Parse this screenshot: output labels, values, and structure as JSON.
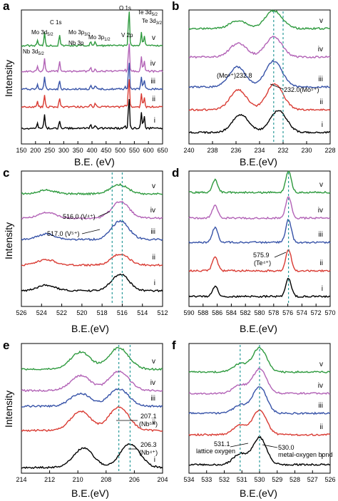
{
  "figure": {
    "colors": {
      "v": "#2e9a3e",
      "iv": "#b262b6",
      "iii": "#3753a8",
      "ii": "#d93a32",
      "i": "#000000",
      "dash": "#2a9a9a"
    },
    "panels": [
      {
        "id": "a",
        "letter": "a",
        "type": "line",
        "xlabel": "B.E. (eV)",
        "ylabel": "Intensity",
        "xlim": [
          150,
          650
        ],
        "ticks": [
          150,
          200,
          250,
          300,
          350,
          400,
          450,
          500,
          550,
          600,
          650
        ],
        "curve_labels": [
          "v",
          "iv",
          "iii",
          "ii",
          "i"
        ],
        "annotations": [
          "Nb 3d",
          "Mo 3d",
          "C 1s",
          "Mo 3p",
          "Nb 3p",
          "Mo 3p",
          "O 1s",
          "Te 3d",
          "Te 3d",
          "V 2p"
        ],
        "subs": [
          "5/2",
          "5/2",
          "3/2",
          "1/2",
          "5/2",
          "3/2"
        ]
      },
      {
        "id": "b",
        "letter": "b",
        "type": "line",
        "xlabel": "B.E.(eV)",
        "xlim": [
          240,
          228
        ],
        "ticks": [
          240,
          238,
          236,
          234,
          232,
          230,
          228
        ],
        "curve_labels": [
          "v",
          "iv",
          "iii",
          "ii",
          "i"
        ],
        "peaks": [
          {
            "label": "(Mo⁶⁺)232.8",
            "x": 232.8
          },
          {
            "label": "232.0(Mo⁵⁺)",
            "x": 232.0
          }
        ]
      },
      {
        "id": "c",
        "letter": "c",
        "type": "line",
        "xlabel": "B.E.(eV)",
        "ylabel": "Intensity",
        "xlim": [
          526,
          512
        ],
        "ticks": [
          526,
          524,
          522,
          520,
          518,
          516,
          514,
          512
        ],
        "curve_labels": [
          "v",
          "iv",
          "iii",
          "ii",
          "i"
        ],
        "peaks": [
          {
            "label": "516.0 (V⁴⁺)",
            "x": 516.0
          },
          {
            "label": "517.0 (V⁵⁺)",
            "x": 517.0
          }
        ]
      },
      {
        "id": "d",
        "letter": "d",
        "type": "line",
        "xlabel": "B.E.(eV)",
        "xlim": [
          590,
          570
        ],
        "ticks": [
          590,
          588,
          586,
          584,
          582,
          580,
          578,
          576,
          574,
          572,
          570
        ],
        "curve_labels": [
          "v",
          "iv",
          "iii",
          "ii",
          "i"
        ],
        "peaks": [
          {
            "label": "575.9",
            "label2": "(Te⁴⁺)",
            "x": 575.9
          }
        ]
      },
      {
        "id": "e",
        "letter": "e",
        "type": "line",
        "xlabel": "B.E.(eV)",
        "ylabel": "Intensity",
        "xlim": [
          214,
          204
        ],
        "ticks": [
          214,
          212,
          210,
          208,
          206,
          204
        ],
        "curve_labels": [
          "v",
          "iv",
          "iii",
          "ii",
          "i"
        ],
        "peaks": [
          {
            "label": "207.1",
            "label2": "(Nb⁵⁺)",
            "x": 207.1
          },
          {
            "label": "206.3",
            "label2": "(Nb⁴⁺)",
            "x": 206.3
          }
        ]
      },
      {
        "id": "f",
        "letter": "f",
        "type": "line",
        "xlabel": "B.E.(eV)",
        "xlim": [
          534,
          526
        ],
        "ticks": [
          534,
          533,
          532,
          531,
          530,
          529,
          528,
          527,
          526
        ],
        "curve_labels": [
          "v",
          "iv",
          "iii",
          "ii",
          "i"
        ],
        "peaks": [
          {
            "label": "531.1",
            "label2": "lattice oxygen",
            "x": 531.1
          },
          {
            "label": "530.0",
            "label2": "metal-oxygen bond",
            "x": 530.0
          }
        ]
      }
    ]
  },
  "chart_data": [
    {
      "panel": "a",
      "type": "line",
      "xlabel": "B.E. (eV)",
      "ylabel": "Intensity",
      "xlim": [
        150,
        650
      ],
      "series": [
        {
          "name": "v",
          "peaks": [
            [
              207,
              0.9
            ],
            [
              232,
              2.2
            ],
            [
              285,
              1.8
            ],
            [
              395,
              0.8
            ],
            [
              412,
              0.6
            ],
            [
              531,
              6.0
            ],
            [
              575,
              2.2
            ],
            [
              585,
              1.6
            ]
          ]
        },
        {
          "name": "iv",
          "peaks": [
            [
              207,
              0.8
            ],
            [
              232,
              2.0
            ],
            [
              285,
              1.5
            ],
            [
              395,
              0.7
            ],
            [
              412,
              0.5
            ],
            [
              517,
              0.4
            ],
            [
              531,
              4.8
            ],
            [
              575,
              2.4
            ],
            [
              585,
              1.7
            ]
          ]
        },
        {
          "name": "iii",
          "peaks": [
            [
              207,
              0.7
            ],
            [
              232,
              1.8
            ],
            [
              285,
              1.3
            ],
            [
              395,
              0.6
            ],
            [
              412,
              0.5
            ],
            [
              517,
              0.4
            ],
            [
              531,
              4.5
            ],
            [
              575,
              2.0
            ],
            [
              585,
              1.4
            ]
          ]
        },
        {
          "name": "ii",
          "peaks": [
            [
              207,
              0.8
            ],
            [
              232,
              1.9
            ],
            [
              285,
              1.4
            ],
            [
              395,
              0.6
            ],
            [
              412,
              0.5
            ],
            [
              517,
              0.4
            ],
            [
              531,
              5.0
            ],
            [
              575,
              2.2
            ],
            [
              585,
              1.5
            ]
          ]
        },
        {
          "name": "i",
          "peaks": [
            [
              207,
              0.9
            ],
            [
              232,
              2.1
            ],
            [
              285,
              1.3
            ],
            [
              395,
              0.7
            ],
            [
              412,
              0.5
            ],
            [
              517,
              0.4
            ],
            [
              531,
              5.2
            ],
            [
              575,
              2.6
            ],
            [
              585,
              1.9
            ]
          ]
        }
      ]
    },
    {
      "panel": "b",
      "type": "line",
      "xlabel": "B.E.(eV)",
      "xlim": [
        240,
        228
      ],
      "series": [
        {
          "name": "v",
          "peaks": [
            [
              235.8,
              0.4
            ],
            [
              232.8,
              0.9
            ]
          ]
        },
        {
          "name": "iv",
          "peaks": [
            [
              235.8,
              0.7
            ],
            [
              232.8,
              1.0
            ]
          ]
        },
        {
          "name": "iii",
          "peaks": [
            [
              235.9,
              1.0
            ],
            [
              232.8,
              1.3
            ]
          ]
        },
        {
          "name": "ii",
          "peaks": [
            [
              235.8,
              1.0
            ],
            [
              232.7,
              1.3
            ]
          ]
        },
        {
          "name": "i",
          "peaks": [
            [
              235.6,
              0.9
            ],
            [
              232.4,
              1.1
            ]
          ]
        }
      ]
    },
    {
      "panel": "c",
      "type": "line",
      "xlabel": "B.E.(eV)",
      "ylabel": "Intensity",
      "xlim": [
        526,
        512
      ],
      "series": [
        {
          "name": "v",
          "peaks": [
            [
              523.5,
              0.2
            ],
            [
              516.3,
              0.5
            ]
          ]
        },
        {
          "name": "iv",
          "peaks": [
            [
              523.5,
              0.3
            ],
            [
              516.2,
              0.9
            ]
          ]
        },
        {
          "name": "iii",
          "peaks": [
            [
              523.5,
              0.3
            ],
            [
              516.2,
              1.0
            ]
          ]
        },
        {
          "name": "ii",
          "peaks": [
            [
              523.5,
              0.3
            ],
            [
              516.2,
              0.6
            ]
          ]
        },
        {
          "name": "i",
          "peaks": [
            [
              523.5,
              0.3
            ],
            [
              516.2,
              0.9
            ]
          ]
        }
      ]
    },
    {
      "panel": "d",
      "type": "line",
      "xlabel": "B.E.(eV)",
      "xlim": [
        590,
        570
      ],
      "series": [
        {
          "name": "v",
          "peaks": [
            [
              586.3,
              0.55
            ],
            [
              575.9,
              0.95
            ]
          ]
        },
        {
          "name": "iv",
          "peaks": [
            [
              586.3,
              0.55
            ],
            [
              575.9,
              0.95
            ]
          ]
        },
        {
          "name": "iii",
          "peaks": [
            [
              586.3,
              0.65
            ],
            [
              575.9,
              1.0
            ]
          ]
        },
        {
          "name": "ii",
          "peaks": [
            [
              586.3,
              0.6
            ],
            [
              575.9,
              0.95
            ]
          ]
        },
        {
          "name": "i",
          "peaks": [
            [
              586.3,
              0.45
            ],
            [
              575.9,
              0.8
            ]
          ]
        }
      ]
    },
    {
      "panel": "e",
      "type": "line",
      "xlabel": "B.E.(eV)",
      "ylabel": "Intensity",
      "xlim": [
        214,
        204
      ],
      "series": [
        {
          "name": "v",
          "peaks": [
            [
              209.8,
              0.8
            ],
            [
              207.1,
              1.0
            ]
          ]
        },
        {
          "name": "iv",
          "peaks": [
            [
              209.8,
              0.7
            ],
            [
              207.1,
              0.9
            ]
          ]
        },
        {
          "name": "iii",
          "peaks": [
            [
              209.8,
              0.6
            ],
            [
              207.1,
              0.8
            ]
          ]
        },
        {
          "name": "ii",
          "peaks": [
            [
              209.8,
              0.9
            ],
            [
              207.1,
              1.1
            ]
          ]
        },
        {
          "name": "i",
          "peaks": [
            [
              209.6,
              0.9
            ],
            [
              206.3,
              1.1
            ]
          ]
        }
      ]
    },
    {
      "panel": "f",
      "type": "line",
      "xlabel": "B.E.(eV)",
      "xlim": [
        534,
        526
      ],
      "series": [
        {
          "name": "v",
          "peaks": [
            [
              530.0,
              0.9
            ],
            [
              531.1,
              0.3
            ]
          ]
        },
        {
          "name": "iv",
          "peaks": [
            [
              530.0,
              0.9
            ],
            [
              531.1,
              0.3
            ]
          ]
        },
        {
          "name": "iii",
          "peaks": [
            [
              530.0,
              1.0
            ],
            [
              531.1,
              0.3
            ]
          ]
        },
        {
          "name": "ii",
          "peaks": [
            [
              530.0,
              0.9
            ],
            [
              531.1,
              0.35
            ]
          ]
        },
        {
          "name": "i",
          "peaks": [
            [
              530.0,
              1.0
            ],
            [
              531.1,
              0.4
            ]
          ]
        }
      ]
    }
  ]
}
